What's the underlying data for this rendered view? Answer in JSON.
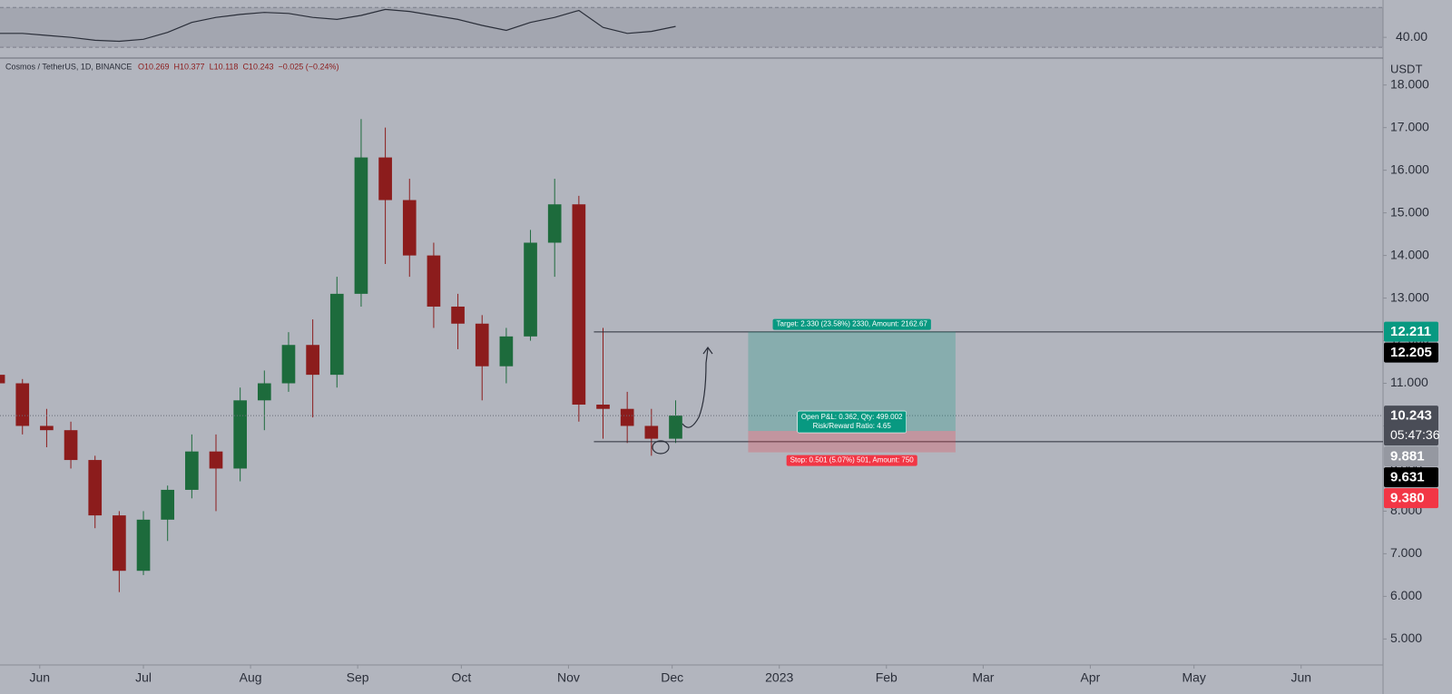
{
  "chart_data": [
    {
      "type": "candlestick",
      "symbol": "Cosmos / TetherUS, 1D, BINANCE",
      "ohlc_legend": [
        "O10.269",
        "H10.377",
        "L10.118",
        "C10.243",
        "−0.025 (−0.24%)"
      ],
      "axis_unit": "USDT",
      "x": [
        -12,
        -5,
        2,
        9,
        16,
        23,
        30,
        37,
        44,
        51,
        58,
        65,
        72,
        79,
        86,
        93,
        100,
        107,
        114,
        121,
        128,
        135,
        142,
        149,
        156,
        163,
        170,
        177,
        184
      ],
      "open": [
        11.2,
        11.0,
        10.0,
        9.9,
        9.2,
        7.9,
        6.6,
        7.8,
        8.5,
        9.4,
        9.0,
        10.6,
        11.0,
        11.9,
        11.2,
        13.1,
        16.3,
        15.3,
        14.0,
        12.8,
        12.4,
        11.4,
        12.1,
        14.3,
        15.2,
        10.5,
        10.4,
        10.0,
        9.7
      ],
      "high": [
        11.6,
        11.1,
        10.4,
        10.1,
        9.3,
        8.0,
        8.0,
        8.6,
        9.8,
        9.8,
        10.9,
        11.3,
        12.2,
        12.5,
        13.5,
        17.2,
        17.0,
        15.8,
        14.3,
        13.1,
        12.6,
        12.3,
        14.6,
        15.8,
        15.4,
        12.3,
        10.8,
        10.4,
        10.6
      ],
      "low": [
        10.8,
        9.8,
        9.5,
        9.0,
        7.6,
        6.1,
        6.5,
        7.3,
        8.3,
        8.0,
        8.7,
        9.9,
        10.8,
        10.2,
        10.9,
        12.8,
        13.8,
        13.5,
        12.3,
        11.8,
        10.6,
        11.0,
        12.0,
        13.5,
        10.1,
        9.7,
        9.6,
        9.3,
        9.6
      ],
      "close": [
        11.0,
        10.0,
        9.9,
        9.2,
        7.9,
        6.6,
        7.8,
        8.5,
        9.4,
        9.0,
        10.6,
        11.0,
        11.9,
        11.2,
        13.1,
        16.3,
        15.3,
        14.0,
        12.8,
        12.4,
        11.4,
        12.1,
        14.3,
        15.2,
        10.5,
        10.4,
        10.0,
        9.7,
        10.243
      ],
      "up_color": "#1d6b3c",
      "down_color": "#8c1c1c",
      "xlim": [
        -11.5,
        388.7
      ],
      "xticks": [
        {
          "value": 0,
          "label": "Jun"
        },
        {
          "value": 30,
          "label": "Jul"
        },
        {
          "value": 61,
          "label": "Aug"
        },
        {
          "value": 92,
          "label": "Sep"
        },
        {
          "value": 122,
          "label": "Oct"
        },
        {
          "value": 153,
          "label": "Nov"
        },
        {
          "value": 183,
          "label": "Dec"
        },
        {
          "value": 214,
          "label": "2023"
        },
        {
          "value": 245,
          "label": "Feb"
        },
        {
          "value": 273,
          "label": "Mar"
        },
        {
          "value": 304,
          "label": "Apr"
        },
        {
          "value": 334,
          "label": "May"
        },
        {
          "value": 365,
          "label": "Jun"
        }
      ],
      "ylim": [
        4.39,
        18.59
      ],
      "yticks": [
        {
          "value": 5,
          "label": "5.000"
        },
        {
          "value": 6,
          "label": "6.000"
        },
        {
          "value": 7,
          "label": "7.000"
        },
        {
          "value": 8,
          "label": "8.000"
        },
        {
          "value": 9,
          "label": "9.000"
        },
        {
          "value": 10,
          "label": "10.000"
        },
        {
          "value": 11,
          "label": "11.000"
        },
        {
          "value": 12,
          "label": "12.000"
        },
        {
          "value": 13,
          "label": "13.000"
        },
        {
          "value": 14,
          "label": "14.000"
        },
        {
          "value": 15,
          "label": "15.000"
        },
        {
          "value": 16,
          "label": "16.000"
        },
        {
          "value": 17,
          "label": "17.000"
        },
        {
          "value": 18,
          "label": "18.000"
        }
      ],
      "hlines": [
        {
          "value": 12.205,
          "label": "12.205"
        },
        {
          "value": 9.631,
          "label": "9.631"
        }
      ],
      "last_price": {
        "value": 10.243,
        "label": "10.243"
      },
      "countdown": "05:47:36",
      "position": {
        "x": [
          205,
          265
        ],
        "target": {
          "value": 12.211,
          "label": "12.211"
        },
        "entry": {
          "value": 9.881,
          "label": "9.881"
        },
        "stop": {
          "value": 9.38,
          "label": "9.380"
        },
        "target_text": "Target: 2.330 (23.58%) 2330, Amount: 2162.67",
        "pnl_text": "Open P&L: 0.362, Qty: 499.002",
        "ratio_text": "Risk/Reward Ratio: 4.65",
        "stop_text": "Stop: 0.501 (5.07%) 501, Amount: 750"
      }
    },
    {
      "type": "line",
      "name": "RSI",
      "color": "#2a2e39",
      "values": [
        44,
        44,
        42,
        40,
        37,
        36,
        38,
        45,
        55,
        60,
        63,
        65,
        64,
        60,
        58,
        62,
        68,
        66,
        62,
        58,
        52,
        47,
        55,
        60,
        67,
        50,
        44,
        46,
        51
      ],
      "ylim": [
        21,
        77.5
      ],
      "yticks": [
        {
          "value": 40,
          "label": "40.00"
        }
      ],
      "bands": [
        30,
        70
      ]
    }
  ]
}
